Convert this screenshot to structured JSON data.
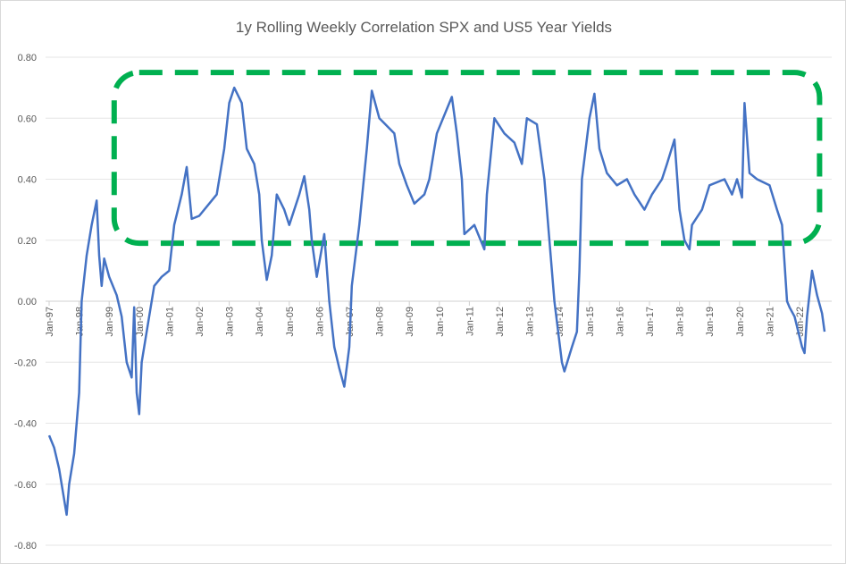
{
  "chart_data": {
    "type": "line",
    "title": "1y Rolling Weekly Correlation SPX and US5 Year Yields",
    "xlabel": "",
    "ylabel": "",
    "ylim": [
      -0.8,
      0.8
    ],
    "yticks": [
      "0.80",
      "0.60",
      "0.40",
      "0.20",
      "0.00",
      "-0.20",
      "-0.40",
      "-0.60",
      "-0.80"
    ],
    "xticks": [
      "Jan-97",
      "Jan-98",
      "Jan-99",
      "Jan-00",
      "Jan-01",
      "Jan-02",
      "Jan-03",
      "Jan-04",
      "Jan-05",
      "Jan-06",
      "Jan-07",
      "Jan-08",
      "Jan-09",
      "Jan-10",
      "Jan-11",
      "Jan-12",
      "Jan-13",
      "Jan-14",
      "Jan-15",
      "Jan-16",
      "Jan-17",
      "Jan-18",
      "Jan-19",
      "Jan-20",
      "Jan-21",
      "Jan-22"
    ],
    "grid": true,
    "line_color": "#4472c4",
    "series": [
      {
        "x": [
          "1997-01",
          "1997-03",
          "1997-05",
          "1997-07",
          "1997-08",
          "1997-09",
          "1997-11",
          "1998-01",
          "1998-02",
          "1998-04",
          "1998-06",
          "1998-08",
          "1998-09",
          "1998-10",
          "1998-11",
          "1999-01",
          "1999-04",
          "1999-06",
          "1999-08",
          "1999-10",
          "1999-11",
          "1999-12",
          "2000-01",
          "2000-02",
          "2000-04",
          "2000-07",
          "2000-10",
          "2001-01",
          "2001-03",
          "2001-06",
          "2001-08",
          "2001-10",
          "2002-01",
          "2002-05",
          "2002-08",
          "2002-11",
          "2003-01",
          "2003-03",
          "2003-06",
          "2003-08",
          "2003-11",
          "2004-01",
          "2004-02",
          "2004-04",
          "2004-06",
          "2004-08",
          "2004-11",
          "2005-01",
          "2005-05",
          "2005-07",
          "2005-09",
          "2005-10",
          "2005-12",
          "2006-03",
          "2006-05",
          "2006-07",
          "2006-09",
          "2006-11",
          "2007-01",
          "2007-02",
          "2007-05",
          "2007-08",
          "2007-10",
          "2008-01",
          "2008-07",
          "2008-09",
          "2008-12",
          "2009-03",
          "2009-07",
          "2009-09",
          "2009-12",
          "2010-04",
          "2010-06",
          "2010-08",
          "2010-10",
          "2010-11",
          "2011-03",
          "2011-07",
          "2011-08",
          "2011-11",
          "2012-03",
          "2012-07",
          "2012-10",
          "2012-12",
          "2013-04",
          "2013-07",
          "2013-09",
          "2013-11",
          "2014-02",
          "2014-03",
          "2014-06",
          "2014-08",
          "2014-09",
          "2014-10",
          "2015-01",
          "2015-03",
          "2015-05",
          "2015-08",
          "2015-12",
          "2016-04",
          "2016-07",
          "2016-11",
          "2017-02",
          "2017-06",
          "2017-08",
          "2017-11",
          "2018-01",
          "2018-03",
          "2018-05",
          "2018-06",
          "2018-10",
          "2019-01",
          "2019-07",
          "2019-10",
          "2019-12",
          "2020-02",
          "2020-03",
          "2020-05",
          "2020-08",
          "2021-01",
          "2021-04",
          "2021-06",
          "2021-08",
          "2021-09",
          "2021-11",
          "2022-02",
          "2022-03",
          "2022-04",
          "2022-06",
          "2022-08",
          "2022-10",
          "2022-11"
        ],
        "y": [
          -0.44,
          -0.48,
          -0.55,
          -0.65,
          -0.7,
          -0.6,
          -0.5,
          -0.3,
          0.0,
          0.15,
          0.25,
          0.33,
          0.15,
          0.05,
          0.14,
          0.08,
          0.02,
          -0.05,
          -0.2,
          -0.25,
          -0.02,
          -0.3,
          -0.37,
          -0.2,
          -0.1,
          0.05,
          0.08,
          0.1,
          0.25,
          0.35,
          0.44,
          0.27,
          0.28,
          0.32,
          0.35,
          0.5,
          0.65,
          0.7,
          0.65,
          0.5,
          0.45,
          0.35,
          0.2,
          0.07,
          0.15,
          0.35,
          0.3,
          0.25,
          0.35,
          0.41,
          0.3,
          0.2,
          0.08,
          0.22,
          0.0,
          -0.15,
          -0.22,
          -0.28,
          -0.15,
          0.05,
          0.25,
          0.5,
          0.69,
          0.6,
          0.55,
          0.45,
          0.38,
          0.32,
          0.35,
          0.4,
          0.55,
          0.63,
          0.67,
          0.55,
          0.4,
          0.22,
          0.25,
          0.17,
          0.35,
          0.6,
          0.55,
          0.52,
          0.45,
          0.6,
          0.58,
          0.4,
          0.2,
          0.0,
          -0.2,
          -0.23,
          -0.15,
          -0.1,
          0.1,
          0.4,
          0.6,
          0.68,
          0.5,
          0.42,
          0.38,
          0.4,
          0.35,
          0.3,
          0.35,
          0.4,
          0.45,
          0.53,
          0.3,
          0.2,
          0.17,
          0.25,
          0.3,
          0.38,
          0.4,
          0.35,
          0.4,
          0.34,
          0.65,
          0.42,
          0.4,
          0.38,
          0.3,
          0.25,
          0.0,
          -0.02,
          -0.05,
          -0.15,
          -0.17,
          -0.05,
          0.1,
          0.02,
          -0.04,
          -0.1
        ]
      }
    ],
    "annotation": {
      "shape": "dashed-rounded-rectangle",
      "color": "#00b050",
      "x_range": [
        "1999-03",
        "2022-09"
      ],
      "y_range": [
        0.19,
        0.75
      ]
    }
  }
}
